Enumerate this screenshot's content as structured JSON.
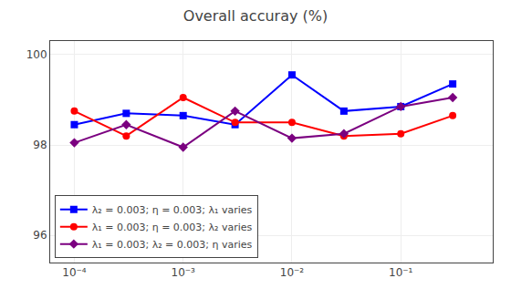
{
  "chart_data": {
    "type": "line",
    "title": "Overall accuray (%)",
    "x": [
      0.0001,
      0.0003,
      0.001,
      0.003,
      0.01,
      0.03,
      0.1,
      0.3
    ],
    "series": [
      {
        "name": "λ₂ = 0.003; η = 0.003; λ₁ varies",
        "color": "#0000ff",
        "marker": "square",
        "line_style": "solid",
        "values": [
          98.45,
          98.7,
          98.65,
          98.45,
          99.55,
          98.75,
          98.85,
          99.35
        ]
      },
      {
        "name": "λ₁ = 0.003; η = 0.003; λ₂ varies",
        "color": "#ff0000",
        "marker": "circle",
        "line_style": "solid",
        "values": [
          98.75,
          98.2,
          99.05,
          98.5,
          98.5,
          98.2,
          98.25,
          98.65
        ]
      },
      {
        "name": "λ₁ = 0.003; λ₂ = 0.003; η varies",
        "color": "#7b0080",
        "marker": "diamond",
        "line_style": "solid",
        "values": [
          98.05,
          98.45,
          97.95,
          98.75,
          98.15,
          98.25,
          98.85,
          99.05
        ]
      }
    ],
    "log": "x",
    "xlim": [
      6e-05,
      0.7
    ],
    "xticks": [
      {
        "value": 0.0001,
        "label": "10⁻⁴"
      },
      {
        "value": 0.001,
        "label": "10⁻³"
      },
      {
        "value": 0.01,
        "label": "10⁻²"
      },
      {
        "value": 0.1,
        "label": "10⁻¹"
      }
    ],
    "ylim": [
      95.4,
      100.3
    ],
    "yticks": [
      96,
      98,
      100
    ],
    "grid": true,
    "legend": "lower left"
  }
}
